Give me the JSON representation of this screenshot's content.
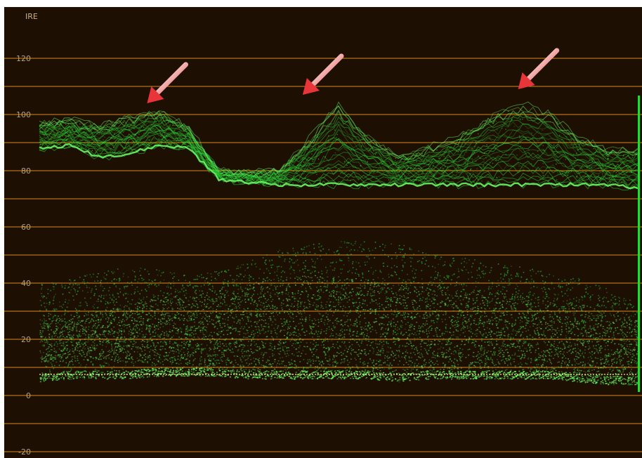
{
  "chart_data": {
    "type": "area",
    "ylabel": "IRE",
    "ylim": [
      -25,
      130
    ],
    "grid": true,
    "y_ticks": [
      120,
      100,
      80,
      60,
      40,
      20,
      0,
      -20
    ],
    "y_ticks_labels": [
      "120",
      "100",
      "80",
      "60",
      "40",
      "20",
      "0",
      "-20"
    ],
    "grid_lines": [
      120,
      110,
      100,
      90,
      80,
      70,
      60,
      50,
      40,
      30,
      20,
      10,
      0,
      -10,
      -20
    ],
    "reference_line": 7.5,
    "x": [
      0,
      5,
      10,
      15,
      20,
      25,
      30,
      35,
      40,
      45,
      50,
      55,
      60,
      65,
      70,
      75,
      80,
      85,
      90,
      95,
      100
    ],
    "series": [
      {
        "values_upper_trace": [
          97,
          98,
          96,
          99,
          101,
          95,
          80,
          79,
          80,
          91,
          104,
          92,
          85,
          88,
          92,
          99,
          104,
          101,
          92,
          88,
          87
        ],
        "values_lower_trace": [
          88,
          89,
          85,
          86,
          89,
          88,
          77,
          76,
          75,
          75,
          75,
          75,
          75,
          75,
          75,
          75,
          75,
          75,
          75,
          75,
          74
        ]
      },
      {
        "values_upper": [
          40,
          42,
          44,
          46,
          45,
          43,
          45,
          48,
          52,
          54,
          55,
          55,
          54,
          52,
          50,
          48,
          46,
          44,
          42,
          38,
          33
        ],
        "values_lower": [
          5,
          6,
          6,
          6,
          7,
          7,
          7,
          6,
          6,
          6,
          6,
          6,
          5,
          6,
          6,
          6,
          6,
          6,
          5,
          4,
          4
        ],
        "values_dense_top": [
          27,
          28,
          30,
          33,
          35,
          36,
          38,
          40,
          42,
          43,
          43,
          42,
          41,
          40,
          39,
          37,
          36,
          34,
          33,
          30,
          27
        ],
        "values_dense_bottom": [
          12,
          12,
          13,
          12,
          12,
          11,
          10,
          9,
          8,
          8,
          8,
          8,
          8,
          8,
          9,
          10,
          10,
          9,
          8,
          7,
          7
        ]
      }
    ],
    "annotations": [
      {
        "type": "arrow",
        "x_at": 18,
        "y_at": 104
      },
      {
        "type": "arrow",
        "x_at": 44,
        "y_at": 107
      },
      {
        "type": "arrow",
        "x_at": 80,
        "y_at": 109
      }
    ]
  },
  "colors": {
    "background": "#1d0f02",
    "grid": "#d88a1c",
    "trace": "#2bd53a",
    "trace_bright": "#6dff6a",
    "reference": "#f7e59a",
    "arrow": "#e8353a",
    "side_bar": "#2bd53a"
  }
}
